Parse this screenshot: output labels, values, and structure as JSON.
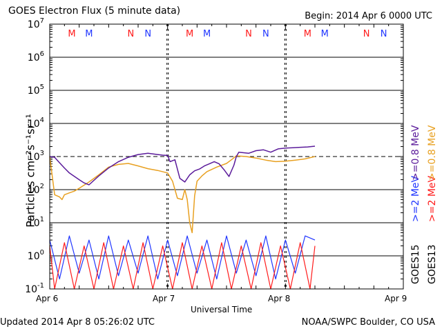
{
  "title": "GOES Electron Flux (5 minute data)",
  "begin": "Begin: 2014 Apr 6 0000 UTC",
  "updated": "Updated 2014 Apr  8 05:26:02 UTC",
  "credit": "NOAA/SWPC Boulder, CO USA",
  "colors": {
    "goes15_0p8": "#5a1a9a",
    "goes13_0p8": "#e8a020",
    "goes15_2": "#1f35ff",
    "goes13_2": "#ff1a1a",
    "axes": "#000000"
  },
  "chart_data": {
    "type": "line",
    "title": "GOES Electron Flux (5 minute data)",
    "xlabel": "Universal Time",
    "ylabel": "Particles cm⁻²s⁻¹sr⁻¹",
    "yscale": "log",
    "ylim": [
      0.1,
      10000000
    ],
    "xlim": [
      0,
      72
    ],
    "x_units": "hours since 2014 Apr 6 0000 UTC",
    "x_ticks": [
      {
        "x": 0,
        "label": "Apr 6"
      },
      {
        "x": 24,
        "label": "Apr 7"
      },
      {
        "x": 48,
        "label": "Apr 8"
      },
      {
        "x": 72,
        "label": "Apr 9"
      }
    ],
    "y_ticks": [
      {
        "v": 0.1,
        "base": "10",
        "exp": "-1"
      },
      {
        "v": 1,
        "base": "10",
        "exp": "0"
      },
      {
        "v": 10,
        "base": "10",
        "exp": "1"
      },
      {
        "v": 100,
        "base": "10",
        "exp": "2"
      },
      {
        "v": 1000,
        "base": "10",
        "exp": "3"
      },
      {
        "v": 10000,
        "base": "10",
        "exp": "4"
      },
      {
        "v": 100000,
        "base": "10",
        "exp": "5"
      },
      {
        "v": 1000000,
        "base": "10",
        "exp": "6"
      },
      {
        "v": 10000000,
        "base": "10",
        "exp": "7"
      }
    ],
    "grid": true,
    "threshold": {
      "value": 1000,
      "style": "dashed"
    },
    "day_markers": [
      24,
      48
    ],
    "event_markers": [
      {
        "label": "M",
        "x": 4.5,
        "color": "#ff1a1a"
      },
      {
        "label": "M",
        "x": 8.0,
        "color": "#1f35ff"
      },
      {
        "label": "N",
        "x": 16.5,
        "color": "#ff1a1a"
      },
      {
        "label": "N",
        "x": 20.0,
        "color": "#1f35ff"
      },
      {
        "label": "M",
        "x": 28.5,
        "color": "#ff1a1a"
      },
      {
        "label": "M",
        "x": 32.0,
        "color": "#1f35ff"
      },
      {
        "label": "N",
        "x": 40.5,
        "color": "#ff1a1a"
      },
      {
        "label": "N",
        "x": 44.0,
        "color": "#1f35ff"
      },
      {
        "label": "M",
        "x": 52.5,
        "color": "#ff1a1a"
      },
      {
        "label": "M",
        "x": 56.0,
        "color": "#1f35ff"
      },
      {
        "label": "N",
        "x": 64.5,
        "color": "#ff1a1a"
      },
      {
        "label": "N",
        "x": 68.0,
        "color": "#1f35ff"
      }
    ],
    "legend": {
      "position": "right",
      "entries": [
        {
          "series": "GOES15 >=0.8 MeV",
          "group": "GOES15",
          "energy": ">=0.8",
          "unit": "MeV",
          "color": "#5a1a9a"
        },
        {
          "series": "GOES13 >=0.8 MeV",
          "group": "GOES13",
          "energy": ">=0.8",
          "unit": "MeV",
          "color": "#e8a020"
        },
        {
          "series": "GOES15 >=2 MeV",
          "group": "GOES15",
          "energy": ">=2",
          "unit": "MeV",
          "color": "#1f35ff"
        },
        {
          "series": "GOES13 >=2 MeV",
          "group": "GOES13",
          "energy": ">=2",
          "unit": "MeV",
          "color": "#ff1a1a"
        }
      ]
    },
    "series": [
      {
        "name": "GOES15 >=0.8 MeV",
        "color": "#5a1a9a",
        "x": [
          0,
          1,
          2,
          3,
          4,
          6,
          7,
          8,
          10,
          12,
          14,
          16,
          18,
          20,
          22,
          23,
          24,
          24.5,
          25.5,
          26.5,
          27.5,
          28.5,
          29.5,
          30.5,
          31.5,
          32.5,
          33.5,
          34.5,
          35.5,
          36.5,
          37.5,
          38,
          38.5,
          39.5,
          40.5,
          42,
          43.5,
          45,
          46.5,
          48,
          49.5,
          51,
          52.5,
          54
        ],
        "y": [
          1000,
          950,
          650,
          450,
          320,
          200,
          160,
          140,
          260,
          450,
          700,
          950,
          1150,
          1250,
          1150,
          1100,
          1080,
          700,
          800,
          220,
          170,
          280,
          370,
          420,
          520,
          600,
          700,
          600,
          400,
          250,
          550,
          1000,
          1350,
          1300,
          1250,
          1500,
          1600,
          1350,
          1700,
          1800,
          1850,
          1900,
          1950,
          2050
        ]
      },
      {
        "name": "GOES13 >=0.8 MeV",
        "color": "#e8a020",
        "x": [
          0,
          1,
          2,
          2.5,
          3,
          4,
          5,
          6,
          8,
          10,
          12,
          14,
          16,
          18,
          20,
          22,
          24,
          25,
          26,
          27,
          27.5,
          28,
          28.5,
          29,
          29.5,
          30,
          31,
          32,
          34,
          36,
          37,
          38,
          40,
          42,
          44,
          46,
          48,
          50,
          52,
          54
        ],
        "y": [
          1000,
          70,
          60,
          50,
          70,
          80,
          90,
          110,
          170,
          280,
          480,
          580,
          620,
          520,
          430,
          380,
          320,
          180,
          55,
          50,
          100,
          50,
          10,
          5,
          65,
          180,
          260,
          350,
          480,
          620,
          800,
          1050,
          1000,
          900,
          780,
          700,
          720,
          780,
          850,
          1000
        ]
      },
      {
        "name": "GOES15 >=2 MeV",
        "color": "#1f35ff",
        "x": [
          0,
          2,
          4,
          6,
          8,
          10,
          12,
          14,
          16,
          18,
          20,
          22,
          24,
          26,
          28,
          30,
          32,
          34,
          36,
          38,
          40,
          42,
          44,
          46,
          48,
          50,
          52,
          54
        ],
        "y": [
          3,
          0.2,
          4,
          0.3,
          3,
          0.2,
          4,
          0.25,
          3,
          0.3,
          4,
          0.2,
          3,
          0.25,
          4,
          0.3,
          3,
          0.2,
          4,
          0.3,
          3,
          0.25,
          4,
          0.2,
          3,
          0.3,
          4,
          3
        ]
      },
      {
        "name": "GOES13 >=2 MeV",
        "color": "#ff1a1a",
        "x": [
          0,
          1,
          3,
          5,
          7,
          9,
          11,
          13,
          15,
          17,
          19,
          21,
          23,
          25,
          27,
          29,
          31,
          33,
          35,
          37,
          39,
          41,
          43,
          45,
          47,
          49,
          51,
          53,
          54
        ],
        "y": [
          2,
          0.1,
          2.5,
          0.1,
          2,
          0.1,
          2.5,
          0.1,
          2,
          0.1,
          2.5,
          0.1,
          2,
          0.1,
          2.5,
          0.1,
          2,
          0.1,
          2.5,
          0.1,
          2,
          0.1,
          2.5,
          0.1,
          2,
          0.1,
          2.5,
          0.1,
          2
        ]
      }
    ]
  }
}
